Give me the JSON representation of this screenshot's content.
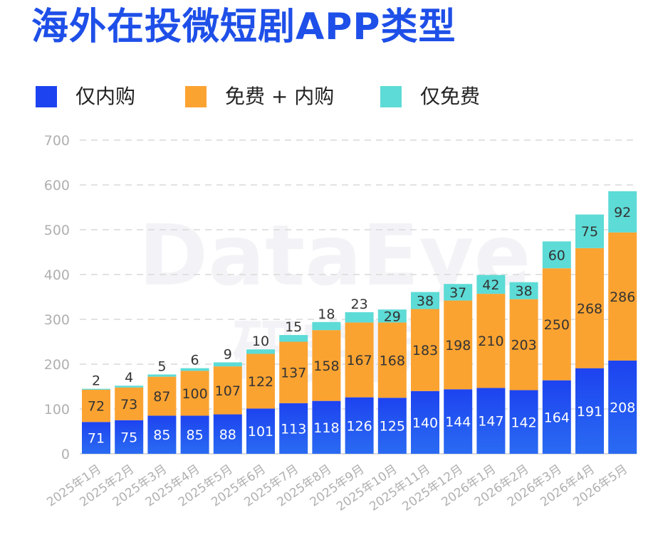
{
  "title": "海外在投微短剧APP类型",
  "colors": {
    "title": "#1E4FE8",
    "paid_only": "#1D43F0",
    "free_plus_paid": "#FBA331",
    "free_only": "#5DDBD6",
    "grid": "#D9D9D9",
    "axis_text": "#B0B0B0",
    "label_dark": "#333333",
    "label_light": "#FFFFFF"
  },
  "legend": [
    {
      "label": "仅内购",
      "color_key": "paid_only"
    },
    {
      "label": "免费 + 内购",
      "color_key": "free_plus_paid"
    },
    {
      "label": "仅免费",
      "color_key": "free_only"
    }
  ],
  "watermark": {
    "primary": "DataEye",
    "secondary": "研究院"
  },
  "chart_data": {
    "type": "bar",
    "stacked": true,
    "categories": [
      "2025年1月",
      "2025年2月",
      "2025年3月",
      "2025年4月",
      "2025年5月",
      "2025年6月",
      "2025年7月",
      "2025年8月",
      "2025年9月",
      "2025年10月",
      "2025年11月",
      "2025年12月",
      "2026年1月",
      "2026年2月",
      "2026年3月",
      "2026年4月",
      "2026年5月"
    ],
    "series": [
      {
        "name": "仅内购",
        "values": [
          71,
          75,
          85,
          85,
          88,
          101,
          113,
          118,
          126,
          125,
          140,
          144,
          147,
          142,
          164,
          191,
          208
        ]
      },
      {
        "name": "免费 + 内购",
        "values": [
          72,
          73,
          87,
          100,
          107,
          122,
          137,
          158,
          167,
          168,
          183,
          198,
          210,
          203,
          250,
          268,
          286
        ]
      },
      {
        "name": "仅免费",
        "values": [
          2,
          4,
          5,
          6,
          9,
          10,
          15,
          18,
          23,
          29,
          38,
          37,
          42,
          38,
          60,
          75,
          92
        ]
      }
    ],
    "ylim": [
      0,
      700
    ],
    "yticks": [
      0,
      100,
      200,
      300,
      400,
      500,
      600,
      700
    ],
    "grid": true,
    "legend_position": "top",
    "x_tick_rotation": "diagonal",
    "xlabel": "",
    "ylabel": ""
  }
}
